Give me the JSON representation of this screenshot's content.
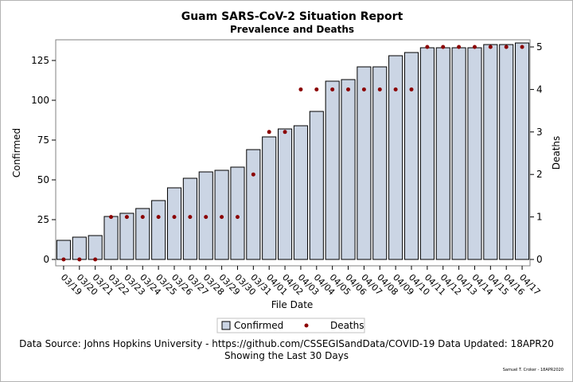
{
  "chart_data": {
    "type": "bar",
    "title": "Guam SARS-CoV-2 Situation Report",
    "subtitle": "Prevalence and Deaths",
    "xlabel": "File Date",
    "ylabel": "Confirmed",
    "y2label": "Deaths",
    "ylim": [
      0,
      137
    ],
    "y2lim": [
      0,
      5
    ],
    "yticks": [
      0,
      25,
      50,
      75,
      100,
      125
    ],
    "y2ticks": [
      0,
      1,
      2,
      3,
      4,
      5
    ],
    "categories": [
      "03/19",
      "03/20",
      "03/21",
      "03/22",
      "03/23",
      "03/24",
      "03/25",
      "03/26",
      "03/27",
      "03/28",
      "03/29",
      "03/30",
      "03/31",
      "04/01",
      "04/02",
      "04/03",
      "04/04",
      "04/05",
      "04/06",
      "04/07",
      "04/08",
      "04/09",
      "04/10",
      "04/11",
      "04/12",
      "04/13",
      "04/14",
      "04/15",
      "04/16",
      "04/17"
    ],
    "series": [
      {
        "name": "Confirmed",
        "kind": "bar",
        "axis": "left",
        "color": "#cbd5e4",
        "values": [
          12,
          14,
          15,
          27,
          29,
          32,
          37,
          45,
          51,
          55,
          56,
          58,
          69,
          77,
          82,
          84,
          93,
          112,
          113,
          121,
          121,
          128,
          130,
          133,
          133,
          133,
          133,
          135,
          135,
          136
        ]
      },
      {
        "name": "Deaths",
        "kind": "scatter",
        "axis": "right",
        "color": "#8b0000",
        "values": [
          0,
          0,
          0,
          1,
          1,
          1,
          1,
          1,
          1,
          1,
          1,
          1,
          2,
          3,
          3,
          4,
          4,
          4,
          4,
          4,
          4,
          4,
          4,
          5,
          5,
          5,
          5,
          5,
          5,
          5
        ]
      }
    ],
    "legend": "bottom",
    "grid": false
  },
  "footer": {
    "source": "Data Source: Johns Hopkins University - https://github.com/CSSEGISandData/COVID-19 Data Updated: 18APR20",
    "period": "Showing the Last 30 Days",
    "credit": "Samuel T. Croker - 18APR2020"
  }
}
